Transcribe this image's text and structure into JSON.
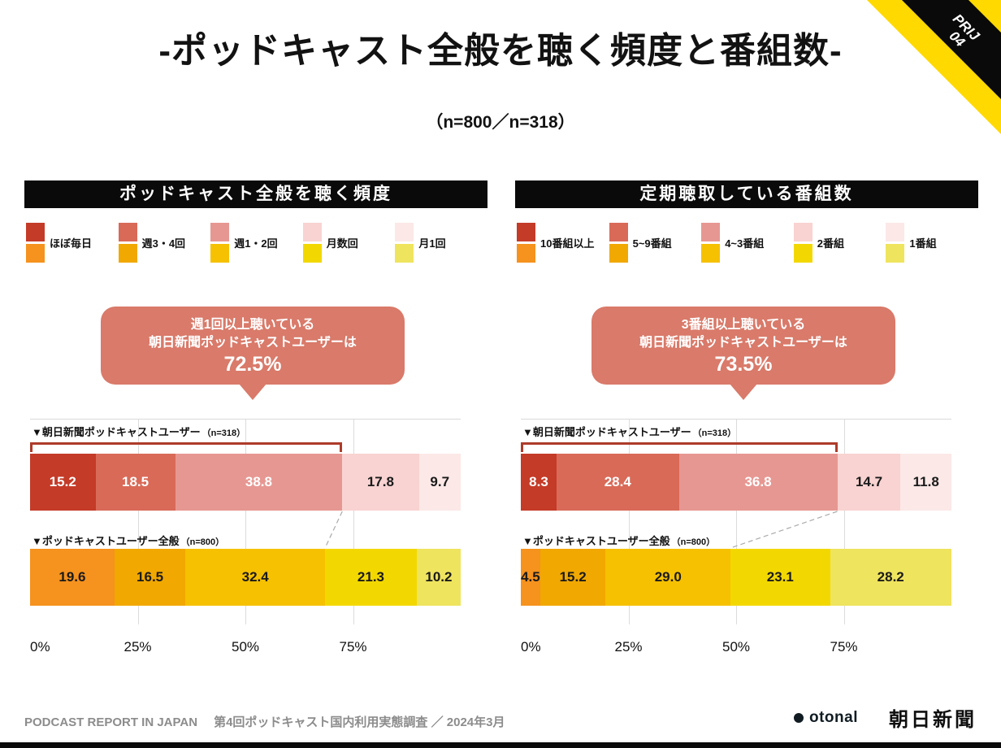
{
  "ribbon": {
    "line1": "PRIJ",
    "line2": "04"
  },
  "title": "-ポッドキャスト全般を聴く頻度と番組数-",
  "subtitle": "（n=800／n=318）",
  "colors": {
    "red_series": [
      "#C43B28",
      "#D96A58",
      "#E79792",
      "#F8D3D1",
      "#FBE8E7"
    ],
    "yellow_series": [
      "#F6921E",
      "#F1A800",
      "#F6C100",
      "#F3D800",
      "#EFE45E"
    ],
    "red_text": [
      "#FFFFFF",
      "#FFFFFF",
      "#FFFFFF",
      "#1A1A1A",
      "#1A1A1A"
    ],
    "yellow_text": [
      "#1A1A1A",
      "#1A1A1A",
      "#1A1A1A",
      "#1A1A1A",
      "#1A1A1A"
    ],
    "callout_bg": "#D97A6A",
    "bracket": "#AE3B2A",
    "accent_yellow": "#FFD900",
    "black": "#0A0A0A",
    "connector_gray": "#ABABAB"
  },
  "panels": [
    {
      "header": "ポッドキャスト全般を聴く頻度",
      "legend": [
        "ほぼ毎日",
        "週3・4回",
        "週1・2回",
        "月数回",
        "月1回"
      ],
      "callout": {
        "line1": "週1回以上聴いている",
        "line2": "朝日新聞ポッドキャストユーザーは",
        "value": "72.5%"
      },
      "bracket_pct": 72.5,
      "series": [
        {
          "label": "▼朝日新聞ポッドキャストユーザー",
          "n_label": "（n=318）",
          "values": [
            15.2,
            18.5,
            38.8,
            17.8,
            9.7
          ],
          "palette": "red_series",
          "text_palette": "red_text"
        },
        {
          "label": "▼ポッドキャストユーザー全般",
          "n_label": "（n=800）",
          "values": [
            19.6,
            16.5,
            32.4,
            21.3,
            10.2
          ],
          "palette": "yellow_series",
          "text_palette": "yellow_text"
        }
      ],
      "connector": {
        "from_pct": 72.5,
        "to_pct": 68.5
      },
      "axis_ticks": [
        {
          "label": "0%",
          "pct": 0
        },
        {
          "label": "25%",
          "pct": 25
        },
        {
          "label": "50%",
          "pct": 50
        },
        {
          "label": "75%",
          "pct": 75
        }
      ]
    },
    {
      "header": "定期聴取している番組数",
      "legend": [
        "10番組以上",
        "5~9番組",
        "4~3番組",
        "2番組",
        "1番組"
      ],
      "callout": {
        "line1": "3番組以上聴いている",
        "line2": "朝日新聞ポッドキャストユーザーは",
        "value": "73.5%"
      },
      "bracket_pct": 73.5,
      "series": [
        {
          "label": "▼朝日新聞ポッドキャストユーザー",
          "n_label": "（n=318）",
          "values": [
            8.3,
            28.4,
            36.8,
            14.7,
            11.8
          ],
          "palette": "red_series",
          "text_palette": "red_text"
        },
        {
          "label": "▼ポッドキャストユーザー全般",
          "n_label": "（n=800）",
          "values": [
            4.5,
            15.2,
            29.0,
            23.1,
            28.2
          ],
          "palette": "yellow_series",
          "text_palette": "yellow_text"
        }
      ],
      "connector": {
        "from_pct": 73.5,
        "to_pct": 48.7
      },
      "axis_ticks": [
        {
          "label": "0%",
          "pct": 0
        },
        {
          "label": "25%",
          "pct": 25
        },
        {
          "label": "50%",
          "pct": 50
        },
        {
          "label": "75%",
          "pct": 75
        }
      ]
    }
  ],
  "footer": {
    "report_name": "PODCAST REPORT IN JAPAN",
    "survey": "第4回ポッドキャスト国内利用実態調査 ／ 2024年3月",
    "otonal": "otonal",
    "asahi": "朝日新聞"
  },
  "chart_data": [
    {
      "type": "bar",
      "stacked": true,
      "orientation": "horizontal",
      "title": "ポッドキャスト全般を聴く頻度",
      "categories": [
        "ほぼ毎日",
        "週3・4回",
        "週1・2回",
        "月数回",
        "月1回"
      ],
      "series": [
        {
          "name": "朝日新聞ポッドキャストユーザー（n=318）",
          "values": [
            15.2,
            18.5,
            38.8,
            17.8,
            9.7
          ]
        },
        {
          "name": "ポッドキャストユーザー全般（n=800）",
          "values": [
            19.6,
            16.5,
            32.4,
            21.3,
            10.2
          ]
        }
      ],
      "xlim": [
        0,
        100
      ],
      "x_ticks": [
        "0%",
        "25%",
        "50%",
        "75%"
      ],
      "annotation": "週1回以上聴いている朝日新聞ポッドキャストユーザーは72.5%"
    },
    {
      "type": "bar",
      "stacked": true,
      "orientation": "horizontal",
      "title": "定期聴取している番組数",
      "categories": [
        "10番組以上",
        "5~9番組",
        "4~3番組",
        "2番組",
        "1番組"
      ],
      "series": [
        {
          "name": "朝日新聞ポッドキャストユーザー（n=318）",
          "values": [
            8.3,
            28.4,
            36.8,
            14.7,
            11.8
          ]
        },
        {
          "name": "ポッドキャストユーザー全般（n=800）",
          "values": [
            4.5,
            15.2,
            29.0,
            23.1,
            28.2
          ]
        }
      ],
      "xlim": [
        0,
        100
      ],
      "x_ticks": [
        "0%",
        "25%",
        "50%",
        "75%"
      ],
      "annotation": "3番組以上聴いている朝日新聞ポッドキャストユーザーは73.5%"
    }
  ]
}
